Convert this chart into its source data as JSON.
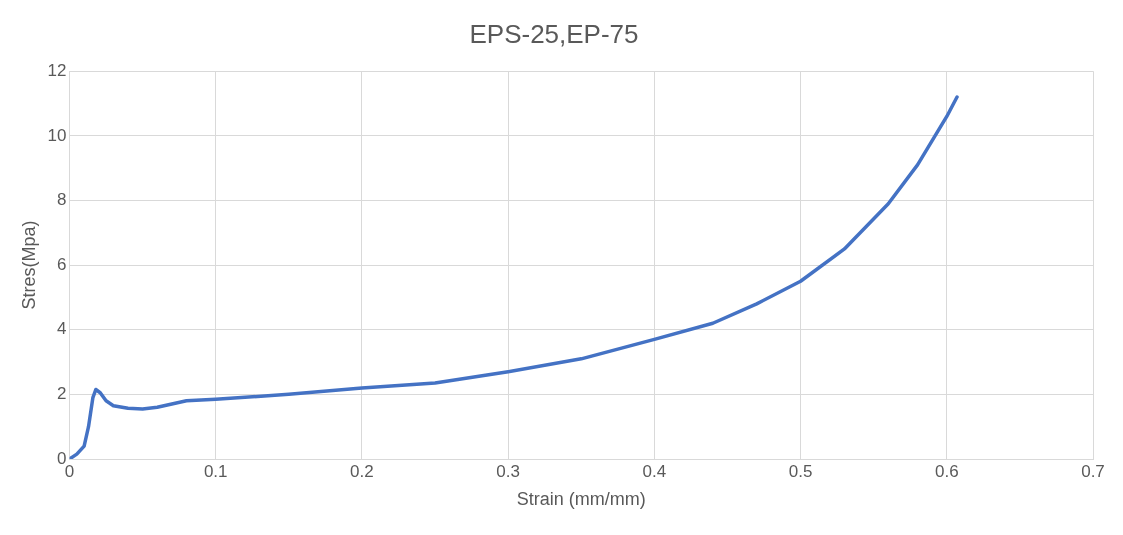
{
  "chart_data": {
    "type": "line",
    "title": "EPS-25,EP-75",
    "xlabel": "Strain (mm/mm)",
    "ylabel": "Stres(Mpa)",
    "xlim": [
      0,
      0.7
    ],
    "xticks": [
      0,
      0.1,
      0.2,
      0.3,
      0.4,
      0.5,
      0.6,
      0.7
    ],
    "ylim": [
      0,
      12
    ],
    "yticks": [
      0,
      2,
      4,
      6,
      8,
      10,
      12
    ],
    "grid": true,
    "legend": false,
    "marker": "none",
    "line_style": "solid",
    "series": [
      {
        "color": "#4472c4",
        "x": [
          0,
          0.005,
          0.01,
          0.013,
          0.016,
          0.018,
          0.021,
          0.025,
          0.03,
          0.04,
          0.05,
          0.06,
          0.07,
          0.08,
          0.1,
          0.15,
          0.2,
          0.25,
          0.3,
          0.35,
          0.4,
          0.44,
          0.47,
          0.5,
          0.53,
          0.56,
          0.58,
          0.6,
          0.607
        ],
        "values": [
          0,
          0.15,
          0.4,
          1.0,
          1.9,
          2.15,
          2.05,
          1.8,
          1.65,
          1.57,
          1.55,
          1.6,
          1.7,
          1.8,
          1.85,
          2.0,
          2.2,
          2.35,
          2.7,
          3.1,
          3.7,
          4.2,
          4.8,
          5.5,
          6.5,
          7.9,
          9.1,
          10.6,
          11.2
        ]
      }
    ]
  }
}
